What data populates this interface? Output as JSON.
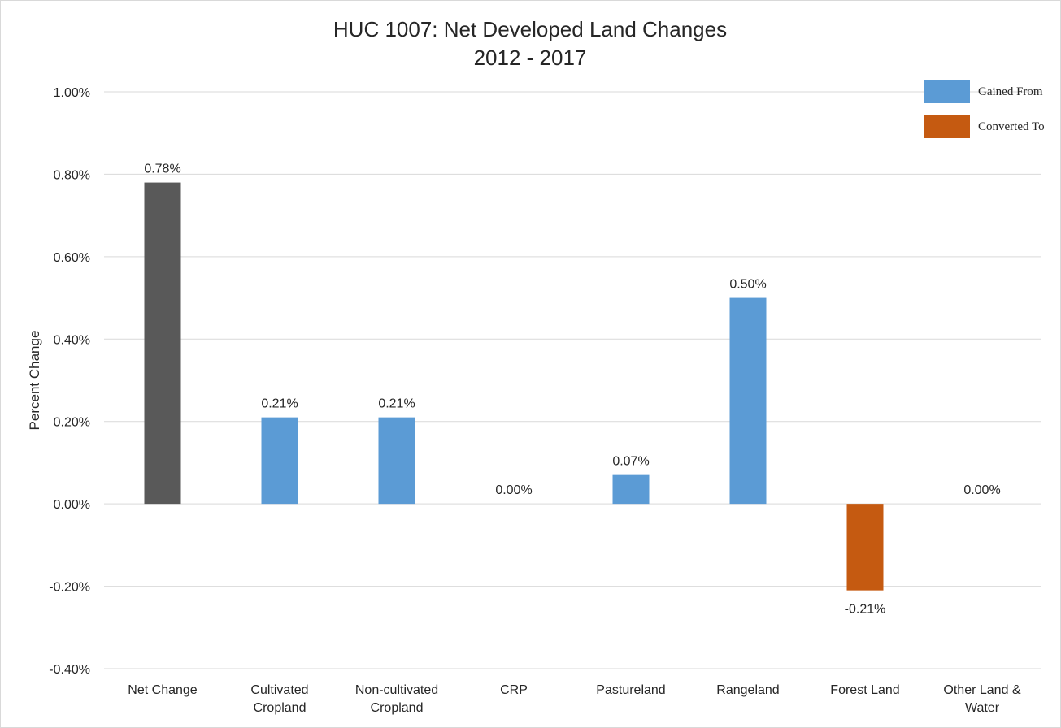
{
  "chart_data": {
    "type": "bar",
    "title": "HUC 1007: Net Developed Land Changes",
    "subtitle": "2012 - 2017",
    "ylabel": "Percent Change",
    "xlabel": "",
    "ylim": [
      -0.4,
      1.0
    ],
    "yticks": [
      1.0,
      0.8,
      0.6,
      0.4,
      0.2,
      0.0,
      -0.2,
      -0.4
    ],
    "ytick_labels": [
      "1.00%",
      "0.80%",
      "0.60%",
      "0.40%",
      "0.20%",
      "0.00%",
      "-0.20%",
      "-0.40%"
    ],
    "grid": true,
    "legend_position": "top-right",
    "categories": [
      [
        "Net Change"
      ],
      [
        "Cultivated",
        "Cropland"
      ],
      [
        "Non-cultivated",
        "Cropland"
      ],
      [
        "CRP"
      ],
      [
        "Pastureland"
      ],
      [
        "Rangeland"
      ],
      [
        "Forest Land"
      ],
      [
        "Other Land &",
        "Water"
      ]
    ],
    "values": [
      0.78,
      0.21,
      0.21,
      0.0,
      0.07,
      0.5,
      -0.21,
      0.0
    ],
    "data_labels": [
      "0.78%",
      "0.21%",
      "0.21%",
      "0.00%",
      "0.07%",
      "0.50%",
      "-0.21%",
      "0.00%"
    ],
    "bar_colors": [
      "#595959",
      "#5b9bd5",
      "#5b9bd5",
      "#5b9bd5",
      "#5b9bd5",
      "#5b9bd5",
      "#c55a11",
      "#5b9bd5"
    ],
    "legend": [
      {
        "name": "Gained From",
        "color": "#5b9bd5"
      },
      {
        "name": "Converted To",
        "color": "#c55a11"
      }
    ]
  }
}
